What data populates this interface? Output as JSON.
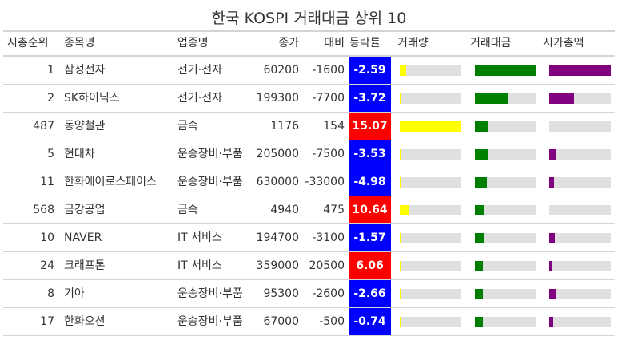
{
  "title": "한국 KOSPI 거래대금 상위 10",
  "columns": [
    "시총순위",
    "종목명",
    "업종명",
    "종가",
    "대비",
    "등락률",
    "거래량",
    "거래대금",
    "시가총액"
  ],
  "colors": {
    "up": "#ff0000",
    "down": "#0000ff",
    "volume": "#ffff00",
    "trade_value": "#008000",
    "market_cap": "#800080",
    "track": "#e0e0e0",
    "rule": "#d3d3d3"
  },
  "chart_data": {
    "type": "table",
    "columns": [
      "시총순위",
      "종목명",
      "업종명",
      "종가",
      "대비",
      "등락률",
      "거래량",
      "거래대금",
      "시가총액"
    ],
    "rows": [
      {
        "rank": "1",
        "name": "삼성전자",
        "sector": "전기·전자",
        "close": "60200",
        "diff": "-1600",
        "pct": "-2.59",
        "volume": 0.1,
        "trade_value": 1.0,
        "market_cap": 1.0
      },
      {
        "rank": "2",
        "name": "SK하이닉스",
        "sector": "전기·전자",
        "close": "199300",
        "diff": "-7700",
        "pct": "-3.72",
        "volume": 0.02,
        "trade_value": 0.55,
        "market_cap": 0.4
      },
      {
        "rank": "487",
        "name": "동양철관",
        "sector": "금속",
        "close": "1176",
        "diff": "154",
        "pct": "15.07",
        "volume": 1.0,
        "trade_value": 0.21,
        "market_cap": 0.0
      },
      {
        "rank": "5",
        "name": "현대차",
        "sector": "운송장비·부품",
        "close": "205000",
        "diff": "-7500",
        "pct": "-3.53",
        "volume": 0.02,
        "trade_value": 0.21,
        "market_cap": 0.1
      },
      {
        "rank": "11",
        "name": "한화에어로스페이스",
        "sector": "운송장비·부품",
        "close": "630000",
        "diff": "-33000",
        "pct": "-4.98",
        "volume": 0.01,
        "trade_value": 0.19,
        "market_cap": 0.08
      },
      {
        "rank": "568",
        "name": "금강공업",
        "sector": "금속",
        "close": "4940",
        "diff": "475",
        "pct": "10.64",
        "volume": 0.14,
        "trade_value": 0.14,
        "market_cap": 0.0
      },
      {
        "rank": "10",
        "name": "NAVER",
        "sector": "IT 서비스",
        "close": "194700",
        "diff": "-3100",
        "pct": "-1.57",
        "volume": 0.02,
        "trade_value": 0.14,
        "market_cap": 0.09
      },
      {
        "rank": "24",
        "name": "크래프톤",
        "sector": "IT 서비스",
        "close": "359000",
        "diff": "20500",
        "pct": "6.06",
        "volume": 0.01,
        "trade_value": 0.13,
        "market_cap": 0.05
      },
      {
        "rank": "8",
        "name": "기아",
        "sector": "운송장비·부품",
        "close": "95300",
        "diff": "-2600",
        "pct": "-2.66",
        "volume": 0.02,
        "trade_value": 0.13,
        "market_cap": 0.1
      },
      {
        "rank": "17",
        "name": "한화오션",
        "sector": "운송장비·부품",
        "close": "67000",
        "diff": "-500",
        "pct": "-0.74",
        "volume": 0.02,
        "trade_value": 0.13,
        "market_cap": 0.07
      }
    ]
  }
}
